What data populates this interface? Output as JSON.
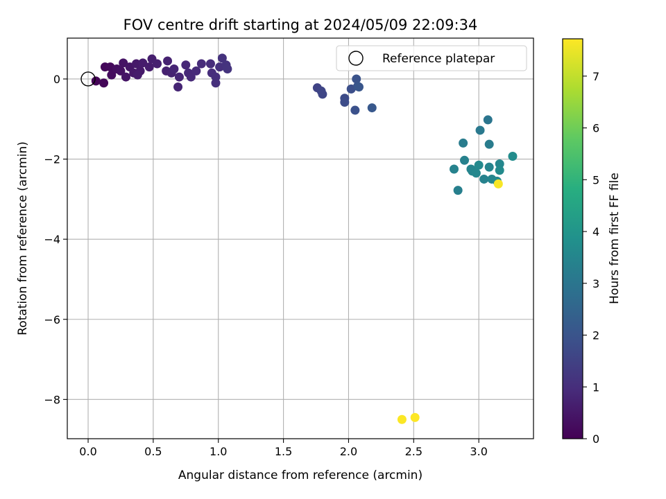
{
  "chart_data": {
    "type": "scatter",
    "title": "FOV centre drift starting at 2024/05/09 22:09:34",
    "xlabel": "Angular distance from reference (arcmin)",
    "ylabel": "Rotation from reference (arcmin)",
    "xlim": [
      -0.16,
      3.42
    ],
    "ylim": [
      -8.98,
      1.02
    ],
    "x_ticks": [
      0.0,
      0.5,
      1.0,
      1.5,
      2.0,
      2.5,
      3.0
    ],
    "x_tick_labels": [
      "0.0",
      "0.5",
      "1.0",
      "1.5",
      "2.0",
      "2.5",
      "3.0"
    ],
    "y_ticks": [
      0,
      -2,
      -4,
      -6,
      -8
    ],
    "y_tick_labels": [
      "0",
      "−2",
      "−4",
      "−6",
      "−8"
    ],
    "grid": true,
    "legend": {
      "placement": "upper-right",
      "entries": [
        "Reference platepar"
      ]
    },
    "colorbar": {
      "label": "Hours from first FF file",
      "range": [
        0,
        7.72
      ],
      "ticks": [
        0,
        1,
        2,
        3,
        4,
        5,
        6,
        7
      ],
      "tick_labels": [
        "0",
        "1",
        "2",
        "3",
        "4",
        "5",
        "6",
        "7"
      ],
      "colormap": "viridis"
    },
    "reference_point": {
      "x": 0.0,
      "y": 0.0
    },
    "series": [
      {
        "points": [
          {
            "x": 0.06,
            "y": -0.05,
            "h": 0.05
          },
          {
            "x": 0.12,
            "y": -0.1,
            "h": 0.1
          },
          {
            "x": 0.13,
            "y": 0.3,
            "h": 0.15
          },
          {
            "x": 0.17,
            "y": 0.3,
            "h": 0.2
          },
          {
            "x": 0.18,
            "y": 0.1,
            "h": 0.25
          },
          {
            "x": 0.22,
            "y": 0.25,
            "h": 0.3
          },
          {
            "x": 0.25,
            "y": 0.2,
            "h": 0.35
          },
          {
            "x": 0.27,
            "y": 0.4,
            "h": 0.4
          },
          {
            "x": 0.29,
            "y": 0.05,
            "h": 0.42
          },
          {
            "x": 0.32,
            "y": 0.3,
            "h": 0.45
          },
          {
            "x": 0.35,
            "y": 0.15,
            "h": 0.5
          },
          {
            "x": 0.37,
            "y": 0.38,
            "h": 0.52
          },
          {
            "x": 0.4,
            "y": 0.2,
            "h": 0.55
          },
          {
            "x": 0.38,
            "y": 0.1,
            "h": 0.58
          },
          {
            "x": 0.42,
            "y": 0.4,
            "h": 0.6
          },
          {
            "x": 0.47,
            "y": 0.3,
            "h": 0.62
          },
          {
            "x": 0.49,
            "y": 0.5,
            "h": 0.65
          },
          {
            "x": 0.53,
            "y": 0.38,
            "h": 0.68
          },
          {
            "x": 0.6,
            "y": 0.2,
            "h": 0.7
          },
          {
            "x": 0.61,
            "y": 0.45,
            "h": 0.72
          },
          {
            "x": 0.64,
            "y": 0.15,
            "h": 0.75
          },
          {
            "x": 0.66,
            "y": 0.25,
            "h": 0.78
          },
          {
            "x": 0.69,
            "y": -0.2,
            "h": 0.8
          },
          {
            "x": 0.7,
            "y": 0.05,
            "h": 0.82
          },
          {
            "x": 0.75,
            "y": 0.35,
            "h": 0.85
          },
          {
            "x": 0.77,
            "y": 0.15,
            "h": 0.88
          },
          {
            "x": 0.79,
            "y": 0.05,
            "h": 0.9
          },
          {
            "x": 0.83,
            "y": 0.2,
            "h": 0.92
          },
          {
            "x": 0.87,
            "y": 0.38,
            "h": 0.95
          },
          {
            "x": 0.94,
            "y": 0.38,
            "h": 0.98
          },
          {
            "x": 0.95,
            "y": 0.15,
            "h": 1.0
          },
          {
            "x": 0.98,
            "y": 0.05,
            "h": 1.02
          },
          {
            "x": 0.98,
            "y": -0.1,
            "h": 1.05
          },
          {
            "x": 1.01,
            "y": 0.3,
            "h": 1.08
          },
          {
            "x": 1.03,
            "y": 0.52,
            "h": 1.1
          },
          {
            "x": 1.06,
            "y": 0.35,
            "h": 1.12
          },
          {
            "x": 1.07,
            "y": 0.25,
            "h": 1.15
          },
          {
            "x": 1.76,
            "y": -0.22,
            "h": 1.55
          },
          {
            "x": 1.79,
            "y": -0.3,
            "h": 1.6
          },
          {
            "x": 1.8,
            "y": -0.38,
            "h": 1.62
          },
          {
            "x": 1.97,
            "y": -0.48,
            "h": 1.75
          },
          {
            "x": 1.97,
            "y": -0.58,
            "h": 1.78
          },
          {
            "x": 2.02,
            "y": -0.25,
            "h": 1.85
          },
          {
            "x": 2.05,
            "y": -0.78,
            "h": 1.9
          },
          {
            "x": 2.06,
            "y": 0.0,
            "h": 1.95
          },
          {
            "x": 2.07,
            "y": -0.18,
            "h": 2.0
          },
          {
            "x": 2.08,
            "y": -0.2,
            "h": 2.05
          },
          {
            "x": 2.18,
            "y": -0.72,
            "h": 2.1
          },
          {
            "x": 2.81,
            "y": -2.25,
            "h": 3.4
          },
          {
            "x": 2.84,
            "y": -2.78,
            "h": 3.3
          },
          {
            "x": 2.88,
            "y": -1.6,
            "h": 3.2
          },
          {
            "x": 2.89,
            "y": -2.03,
            "h": 3.35
          },
          {
            "x": 2.94,
            "y": -2.25,
            "h": 3.45
          },
          {
            "x": 2.95,
            "y": -2.3,
            "h": 3.5
          },
          {
            "x": 2.98,
            "y": -2.35,
            "h": 3.55
          },
          {
            "x": 3.0,
            "y": -2.15,
            "h": 3.6
          },
          {
            "x": 3.01,
            "y": -1.28,
            "h": 3.1
          },
          {
            "x": 3.04,
            "y": -2.5,
            "h": 3.4
          },
          {
            "x": 3.07,
            "y": -1.02,
            "h": 3.0
          },
          {
            "x": 3.08,
            "y": -1.63,
            "h": 3.2
          },
          {
            "x": 3.08,
            "y": -2.2,
            "h": 3.45
          },
          {
            "x": 3.1,
            "y": -2.5,
            "h": 3.5
          },
          {
            "x": 3.14,
            "y": -2.55,
            "h": 3.6
          },
          {
            "x": 3.16,
            "y": -2.12,
            "h": 3.55
          },
          {
            "x": 3.16,
            "y": -2.28,
            "h": 3.65
          },
          {
            "x": 3.26,
            "y": -1.93,
            "h": 3.7
          },
          {
            "x": 3.15,
            "y": -2.62,
            "h": 7.65
          },
          {
            "x": 2.41,
            "y": -8.5,
            "h": 7.7
          },
          {
            "x": 2.51,
            "y": -8.45,
            "h": 7.72
          }
        ]
      }
    ]
  }
}
